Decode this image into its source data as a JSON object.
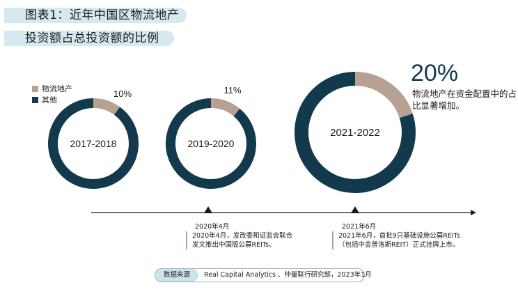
{
  "title": {
    "line1": "图表1：近年中国区物流地产",
    "line2": "投资额占总投资额的比例"
  },
  "legend": [
    {
      "label": "物流地产",
      "color": "#b7a193"
    },
    {
      "label": "其他",
      "color": "#13394c"
    }
  ],
  "chart_data": {
    "type": "pie",
    "variant": "donut",
    "categories": [
      "2017-2018",
      "2019-2020",
      "2021-2022"
    ],
    "series": [
      {
        "name": "物流地产",
        "values": [
          10,
          11,
          20
        ],
        "color": "#b7a193"
      },
      {
        "name": "其他",
        "values": [
          90,
          89,
          80
        ],
        "color": "#13394c"
      }
    ],
    "data_labels": [
      "10%",
      "11%",
      "20%"
    ]
  },
  "highlight": {
    "value": "20%",
    "note": "物流地产在资金配置中的占比显著增加。"
  },
  "timeline": [
    {
      "date": "2020年4月",
      "note": "2020年4月，发改委和证监会联合发文推出中国版公募REITs。"
    },
    {
      "date": "2021年6月",
      "note": "2021年6月，首批9只基础设施公募REITs（包括中金普洛斯REIT）正式挂牌上市。"
    }
  ],
  "source": {
    "label": "数据来源",
    "text": "Real Capital Analytics 、仲量联行研究部，2023年1月"
  }
}
